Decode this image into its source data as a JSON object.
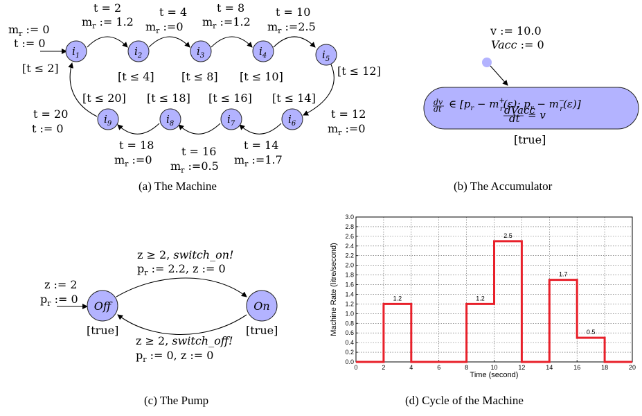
{
  "machine": {
    "caption": "(a) The Machine",
    "init": [
      "m_r := 0",
      "t := 0"
    ],
    "states": [
      "i1",
      "i2",
      "i3",
      "i4",
      "i5",
      "i6",
      "i7",
      "i8",
      "i9"
    ],
    "invariants": [
      "[t ≤ 2]",
      "[t ≤ 4]",
      "[t ≤ 8]",
      "[t ≤ 10]",
      "[t ≤ 12]",
      "[t ≤ 14]",
      "[t ≤ 16]",
      "[t ≤ 18]",
      "[t ≤ 20]"
    ],
    "guards": [
      "t = 2",
      "t = 4",
      "t = 8",
      "t = 10",
      "t = 12",
      "t = 14",
      "t = 16",
      "t = 18",
      "t = 20"
    ],
    "updates": [
      "m_r := 1.2",
      "m_r := 0",
      "m_r := 1.2",
      "m_r := 2.5",
      "m_r := 0",
      "m_r := 1.7",
      "m_r := 0.5",
      "m_r := 0",
      "t := 0"
    ]
  },
  "accumulator": {
    "caption": "(b) The Accumulator",
    "init_v": "v := 10.0",
    "init_vacc": "Vacc := 0",
    "flow1": "dv/dt ∈ [p_r − m_r⁺(ε); p_r − m_r⁻(ε)]",
    "flow2": "dVacc/dt = v",
    "invariant": "[true]"
  },
  "pump": {
    "caption": "(c) The Pump",
    "init_z": "z := 2",
    "init_pr": "p_r := 0",
    "state_off": "Off",
    "state_on": "On",
    "inv_off": "[true]",
    "inv_on": "[true]",
    "top_guard": "z ≥ 2, switch_on!",
    "top_update": "p_r := 2.2, z := 0",
    "bottom_guard": "z ≥ 2, switch_off!",
    "bottom_update": "p_r := 0, z := 0"
  },
  "cycle_caption": "(d) Cycle of the Machine",
  "chart_data": {
    "type": "line",
    "step": true,
    "xlabel": "Time (second)",
    "ylabel": "Machine Rate  (litre/second)",
    "xlim": [
      0,
      20
    ],
    "ylim": [
      0,
      3.0
    ],
    "xticks": [
      0,
      2,
      4,
      6,
      8,
      10,
      12,
      14,
      16,
      18,
      20
    ],
    "yticks": [
      0.0,
      0.2,
      0.4,
      0.6,
      0.8,
      1.0,
      1.2,
      1.4,
      1.6,
      1.8,
      2.0,
      2.2,
      2.4,
      2.6,
      2.8,
      3.0
    ],
    "grid": true,
    "series": [
      {
        "color": "#e8202a",
        "x": [
          0,
          2,
          2,
          4,
          4,
          8,
          8,
          10,
          10,
          12,
          12,
          14,
          14,
          16,
          16,
          18,
          18,
          20
        ],
        "y": [
          0,
          0,
          1.2,
          1.2,
          0,
          0,
          1.2,
          1.2,
          2.5,
          2.5,
          0,
          0,
          1.7,
          1.7,
          0.5,
          0.5,
          0,
          0
        ]
      }
    ],
    "annotations": [
      {
        "x": 3,
        "y": 1.2,
        "text": "1.2"
      },
      {
        "x": 9,
        "y": 1.2,
        "text": "1.2"
      },
      {
        "x": 11,
        "y": 2.5,
        "text": "2.5"
      },
      {
        "x": 15,
        "y": 1.7,
        "text": "1.7"
      },
      {
        "x": 17,
        "y": 0.5,
        "text": "0.5"
      }
    ]
  }
}
